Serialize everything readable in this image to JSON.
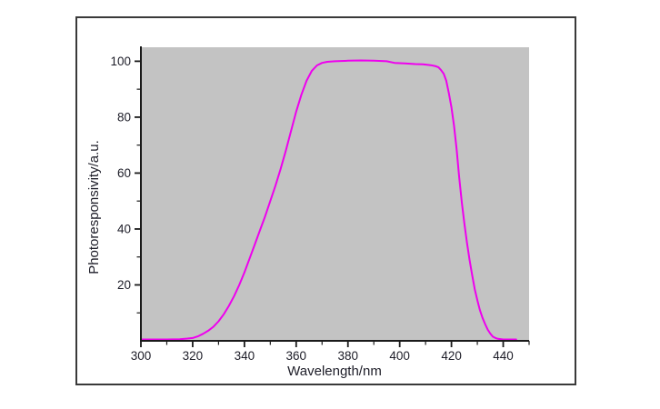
{
  "figure": {
    "description": "Photoresponsivity spectrum line plot in a bordered figure window"
  },
  "chart_data": {
    "type": "line",
    "title": "",
    "xlabel": "Wavelength/nm",
    "ylabel": "Photoresponsivity/a.u.",
    "xlim": [
      300,
      450
    ],
    "ylim": [
      0,
      105
    ],
    "grid": false,
    "legend": null,
    "x_major_ticks": [
      300,
      320,
      340,
      360,
      380,
      400,
      420,
      440
    ],
    "x_minor_ticks": [
      310,
      330,
      350,
      370,
      390,
      410,
      430,
      450
    ],
    "y_major_ticks": [
      20,
      40,
      60,
      80,
      100
    ],
    "y_minor_ticks": [
      10,
      30,
      50,
      70,
      90
    ],
    "colors": {
      "line": "#ee00ee",
      "plot_background": "#c3c3c3",
      "axis": "#1a1a1a",
      "text": "#1d1d28",
      "frame_border": "#3a3a3a",
      "figure_background": "#ffffff"
    },
    "series": [
      {
        "name": "photoresponsivity",
        "points": [
          [
            300,
            0.5
          ],
          [
            305,
            0.5
          ],
          [
            310,
            0.5
          ],
          [
            315,
            0.6
          ],
          [
            318,
            0.8
          ],
          [
            320,
            1.0
          ],
          [
            322,
            1.6
          ],
          [
            324,
            2.5
          ],
          [
            326,
            3.6
          ],
          [
            328,
            5.0
          ],
          [
            330,
            7.0
          ],
          [
            332,
            9.5
          ],
          [
            334,
            12.5
          ],
          [
            336,
            16.0
          ],
          [
            338,
            20.0
          ],
          [
            340,
            24.5
          ],
          [
            342,
            29.5
          ],
          [
            344,
            34.5
          ],
          [
            346,
            39.5
          ],
          [
            348,
            44.5
          ],
          [
            350,
            50.0
          ],
          [
            352,
            55.5
          ],
          [
            354,
            61.5
          ],
          [
            356,
            68.0
          ],
          [
            358,
            75.0
          ],
          [
            360,
            82.0
          ],
          [
            362,
            88.0
          ],
          [
            364,
            93.0
          ],
          [
            366,
            96.5
          ],
          [
            368,
            98.5
          ],
          [
            370,
            99.4
          ],
          [
            372,
            99.8
          ],
          [
            375,
            100.0
          ],
          [
            380,
            100.2
          ],
          [
            385,
            100.3
          ],
          [
            390,
            100.2
          ],
          [
            395,
            100.0
          ],
          [
            398,
            99.4
          ],
          [
            402,
            99.2
          ],
          [
            406,
            99.0
          ],
          [
            409,
            98.9
          ],
          [
            412,
            98.6
          ],
          [
            414,
            98.2
          ],
          [
            415,
            97.8
          ],
          [
            416,
            96.8
          ],
          [
            417,
            95.5
          ],
          [
            418,
            93.0
          ],
          [
            419,
            88.5
          ],
          [
            420,
            83.5
          ],
          [
            421,
            77.0
          ],
          [
            422,
            68.5
          ],
          [
            423,
            58.5
          ],
          [
            424,
            49.5
          ],
          [
            425,
            42.0
          ],
          [
            426,
            35.0
          ],
          [
            427,
            29.0
          ],
          [
            428,
            23.5
          ],
          [
            429,
            18.5
          ],
          [
            430,
            14.5
          ],
          [
            431,
            11.0
          ],
          [
            432,
            8.2
          ],
          [
            433,
            6.0
          ],
          [
            434,
            4.0
          ],
          [
            435,
            2.6
          ],
          [
            436,
            1.5
          ],
          [
            437,
            1.0
          ],
          [
            438,
            0.7
          ],
          [
            440,
            0.5
          ],
          [
            442,
            0.5
          ],
          [
            445,
            0.5
          ]
        ]
      }
    ]
  }
}
